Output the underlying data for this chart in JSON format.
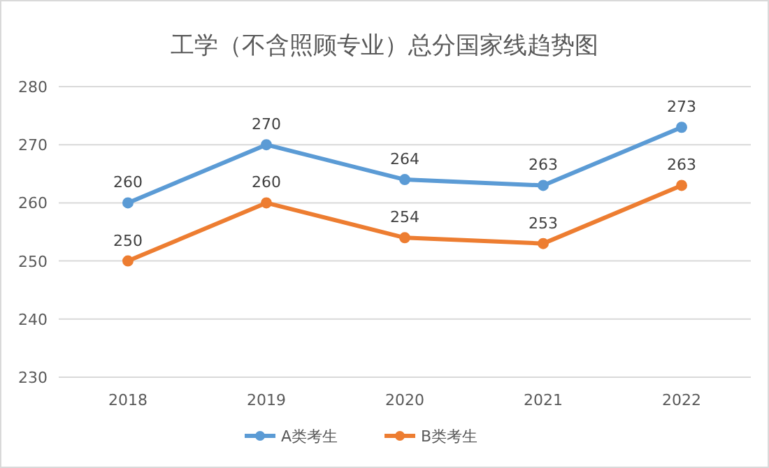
{
  "chart_data": {
    "type": "line",
    "title": "工学（不含照顾专业）总分国家线趋势图",
    "categories": [
      "2018",
      "2019",
      "2020",
      "2021",
      "2022"
    ],
    "series": [
      {
        "name": "A类考生",
        "color": "#5b9bd5",
        "values": [
          260,
          270,
          264,
          263,
          273
        ]
      },
      {
        "name": "B类考生",
        "color": "#ed7d31",
        "values": [
          250,
          260,
          254,
          253,
          263
        ]
      }
    ],
    "ylim": [
      230,
      280
    ],
    "yticks": [
      230,
      240,
      250,
      260,
      270,
      280
    ],
    "grid": "y",
    "legend": "bottom",
    "marker": "circle",
    "data_labels": true
  }
}
